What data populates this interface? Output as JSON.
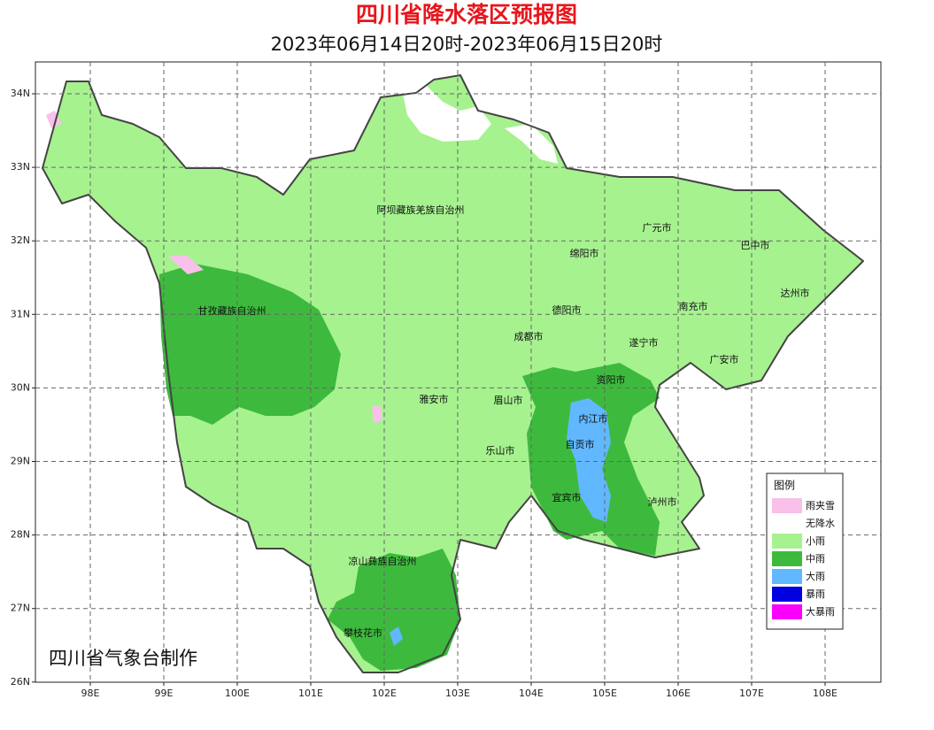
{
  "header": {
    "title": "四川省降水落区预报图",
    "subtitle": "2023年06月14日20时-2023年06月15日20时"
  },
  "map": {
    "lat_labels": [
      "34N",
      "33N",
      "32N",
      "31N",
      "30N",
      "29N",
      "28N",
      "27N",
      "26N"
    ],
    "lon_labels": [
      "98E",
      "99E",
      "100E",
      "101E",
      "102E",
      "103E",
      "104E",
      "105E",
      "106E",
      "107E",
      "108E"
    ],
    "regions": [
      "阿坝藏族羌族自治州",
      "广元市",
      "巴中市",
      "绵阳市",
      "达州市",
      "甘孜藏族自治州",
      "德阳市",
      "南充市",
      "成都市",
      "遂宁市",
      "广安市",
      "资阳市",
      "雅安市",
      "眉山市",
      "内江市",
      "自贡市",
      "乐山市",
      "宜宾市",
      "泸州市",
      "凉山彝族自治州",
      "攀枝花市"
    ]
  },
  "legend": {
    "title": "图例",
    "items": [
      {
        "label": "雨夹雪",
        "color": "#f9c0ea"
      },
      {
        "label": "无降水",
        "color": "#ffffff"
      },
      {
        "label": "小雨",
        "color": "#a6f28f"
      },
      {
        "label": "中雨",
        "color": "#3dba3d"
      },
      {
        "label": "大雨",
        "color": "#61b8ff"
      },
      {
        "label": "暴雨",
        "color": "#0000e1"
      },
      {
        "label": "大暴雨",
        "color": "#fa00fa"
      }
    ]
  },
  "credit": "四川省气象台制作"
}
